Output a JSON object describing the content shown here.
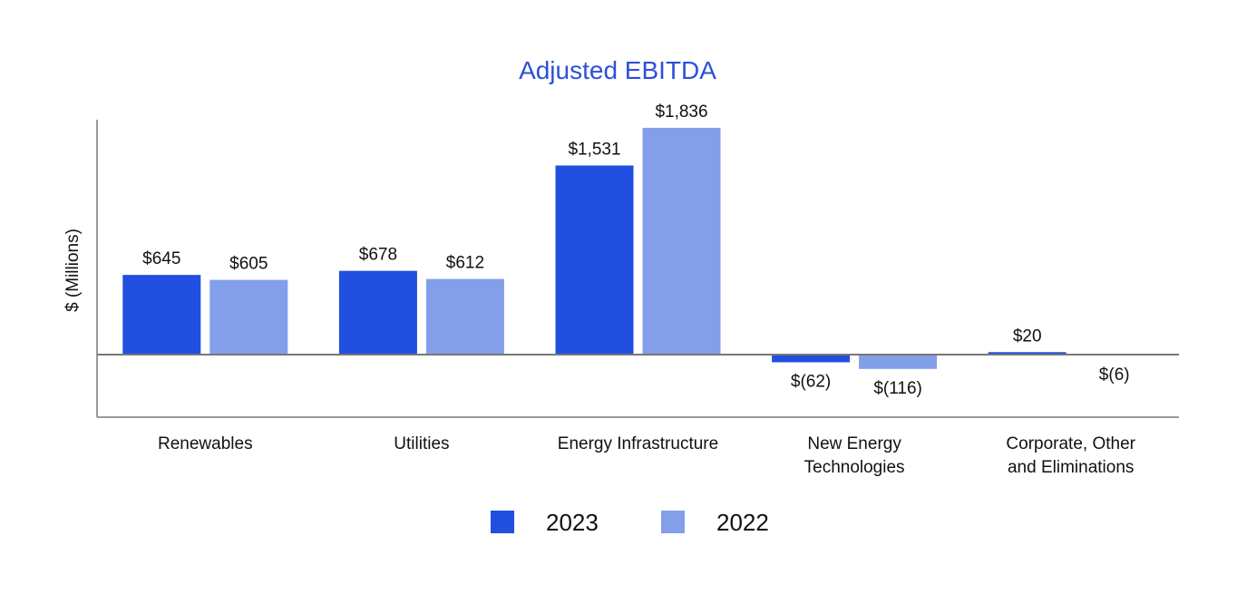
{
  "chart_data": {
    "type": "bar",
    "title": "Adjusted EBITDA",
    "ylabel": "$ (Millions)",
    "xlabel": "",
    "categories": [
      [
        "Renewables"
      ],
      [
        "Utilities"
      ],
      [
        "Energy Infrastructure"
      ],
      [
        "New Energy",
        "Technologies"
      ],
      [
        "Corporate, Other",
        "and Eliminations"
      ]
    ],
    "series": [
      {
        "name": "2023",
        "color": "#214FDF",
        "values": [
          645,
          678,
          1531,
          -62,
          20
        ],
        "labels": [
          "$645",
          "$678",
          "$1,531",
          "$(62)",
          "$20"
        ]
      },
      {
        "name": "2022",
        "color": "#839FEA",
        "values": [
          605,
          612,
          1836,
          -116,
          -6
        ],
        "labels": [
          "$605",
          "$612",
          "$1,836",
          "$(116)",
          "$(6)"
        ]
      }
    ],
    "ylim": [
      -540,
      2060
    ],
    "grid": false,
    "legend": "bottom-center"
  }
}
